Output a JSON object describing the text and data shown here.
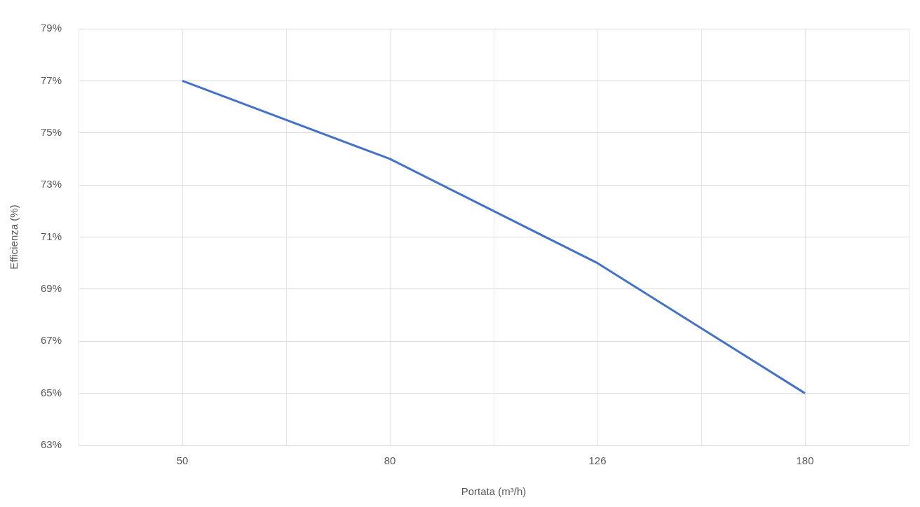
{
  "chart_data": {
    "type": "line",
    "xlabel": "Portata (m³/h)",
    "ylabel": "Efficienza (%)",
    "categories": [
      "50",
      "80",
      "126",
      "180"
    ],
    "series": [
      {
        "color": "#4472c4",
        "values": [
          77,
          74,
          70,
          65
        ]
      }
    ],
    "ylim": [
      63,
      79
    ],
    "yticks": [
      {
        "value": 63,
        "label": "63%"
      },
      {
        "value": 65,
        "label": "65%"
      },
      {
        "value": 67,
        "label": "67%"
      },
      {
        "value": 69,
        "label": "69%"
      },
      {
        "value": 71,
        "label": "71%"
      },
      {
        "value": 73,
        "label": "73%"
      },
      {
        "value": 75,
        "label": "75%"
      },
      {
        "value": 77,
        "label": "77%"
      },
      {
        "value": 79,
        "label": "79%"
      }
    ],
    "grid": true,
    "legend": false,
    "marker": "none",
    "line_style": "solid"
  }
}
